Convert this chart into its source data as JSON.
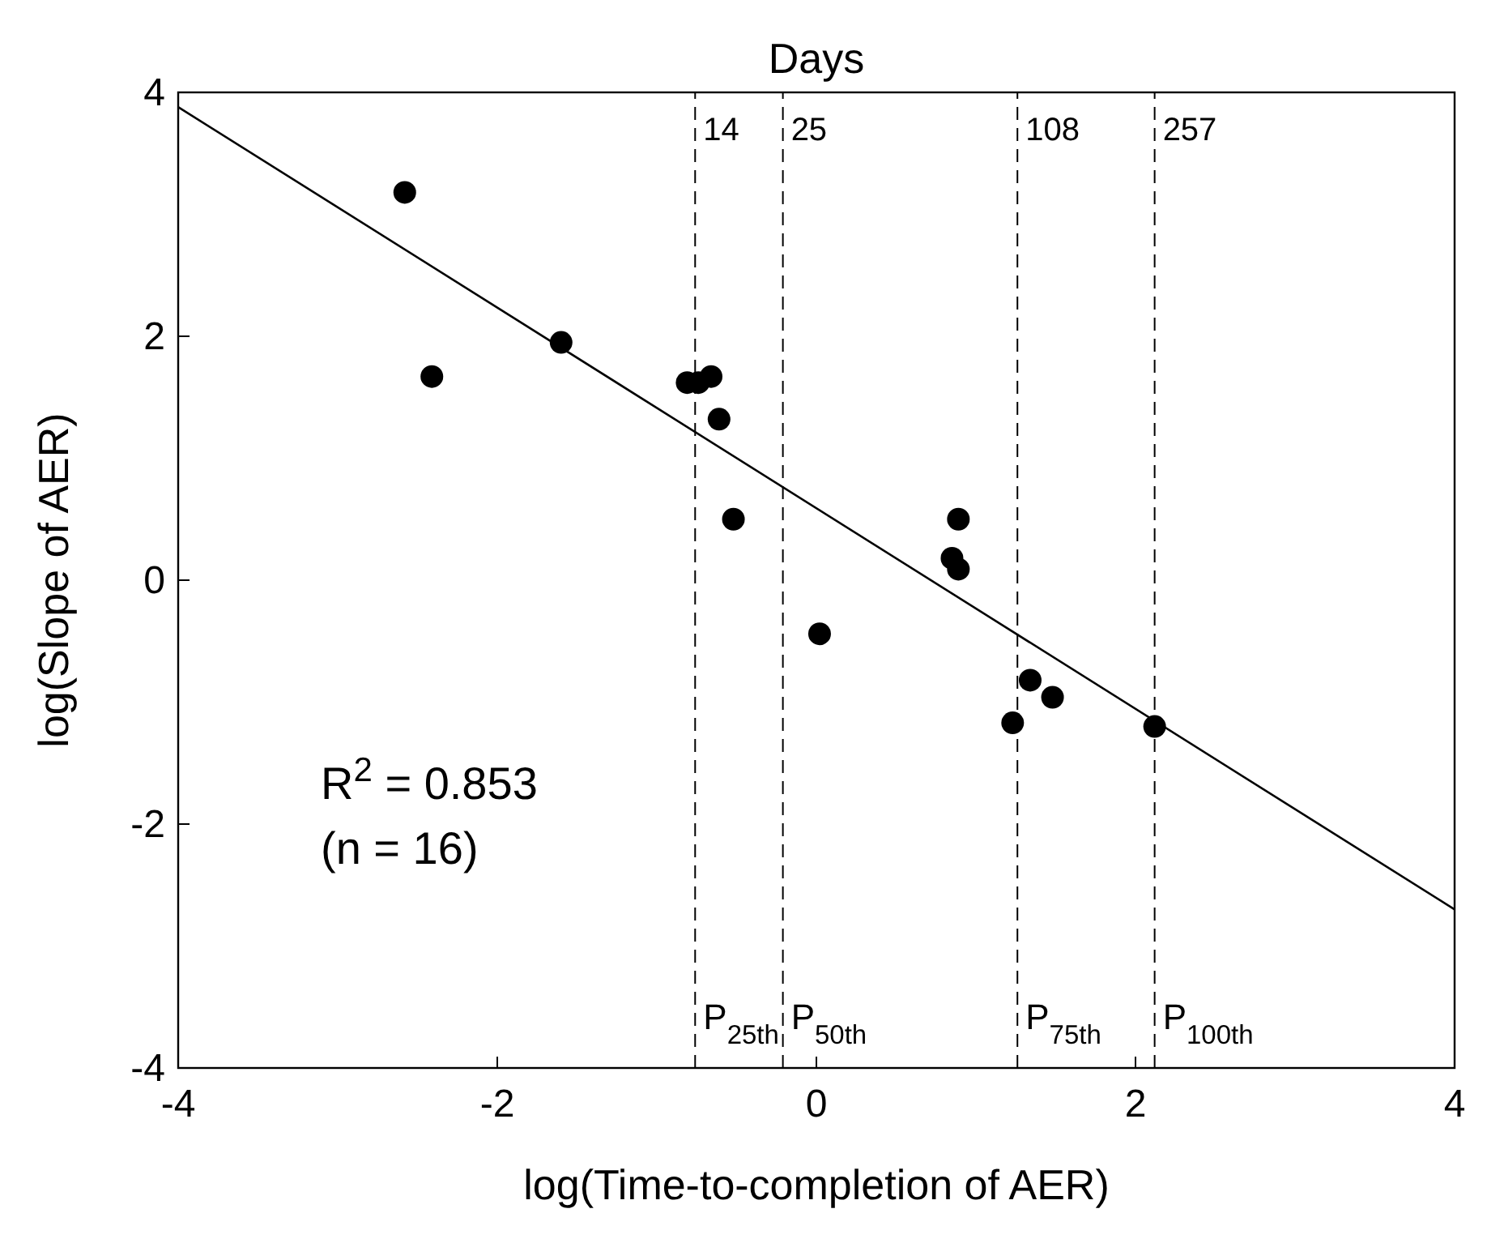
{
  "chart_data": {
    "type": "scatter",
    "xlabel": "log(Time-to-completion of AER)",
    "ylabel": "log(Slope of AER)",
    "x2label": "Days",
    "xlim": [
      -4,
      4
    ],
    "xticks": [
      -4,
      -2,
      0,
      2,
      4
    ],
    "ylim": [
      -4,
      4
    ],
    "yticks": [
      -4,
      -2,
      0,
      2,
      4
    ],
    "grid": false,
    "series": [
      {
        "marker": "circle",
        "color": "#000000",
        "x": [
          -2.58,
          -2.41,
          -1.6,
          -0.81,
          -0.74,
          -0.66,
          -0.61,
          -0.52,
          0.02,
          0.85,
          0.89,
          0.89,
          1.23,
          1.34,
          1.48,
          2.12
        ],
        "values": [
          3.18,
          1.67,
          1.95,
          1.62,
          1.62,
          1.67,
          1.32,
          0.5,
          -0.44,
          0.18,
          0.5,
          0.09,
          -1.17,
          -0.82,
          -0.96,
          -1.2
        ]
      },
      {
        "type": "line",
        "color": "#000000",
        "x": [
          -4,
          4
        ],
        "values": [
          3.88,
          -2.7
        ],
        "line_style": "solid",
        "marker": "none"
      }
    ],
    "ref_lines": [
      {
        "axis": "x",
        "value": -0.76,
        "label": "P$_{25th}$",
        "line_style": "dashed",
        "color": "#000000"
      },
      {
        "axis": "x",
        "value": -0.21,
        "label": "P$_{50th}$",
        "line_style": "dashed",
        "color": "#000000"
      },
      {
        "axis": "x",
        "value": 1.26,
        "label": "P$_{75th}$",
        "line_style": "dashed",
        "color": "#000000"
      },
      {
        "axis": "x",
        "value": 2.12,
        "label": "P$_{100th}$",
        "line_style": "dashed",
        "color": "#000000"
      }
    ],
    "annotations": [
      "R$^{2}$ = 0.853",
      "(n = 16)",
      {
        "text": "14",
        "x": -0.76,
        "y": 3.7
      },
      {
        "text": "25",
        "x": -0.21,
        "y": 3.7
      },
      {
        "text": "108",
        "x": 1.26,
        "y": 3.7
      },
      {
        "text": "257",
        "x": 2.12,
        "y": 3.7
      }
    ]
  }
}
